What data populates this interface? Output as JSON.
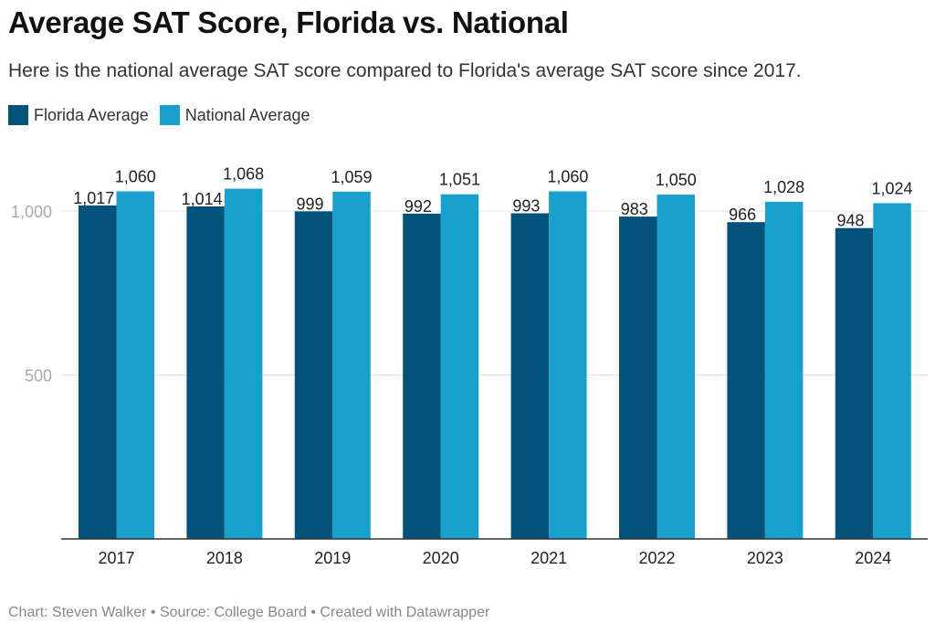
{
  "chart_data": {
    "type": "bar",
    "title": "Average SAT Score, Florida vs. National",
    "subtitle": "Here is the national average SAT score compared to Florida's average SAT score since 2017.",
    "categories": [
      "2017",
      "2018",
      "2019",
      "2020",
      "2021",
      "2022",
      "2023",
      "2024"
    ],
    "series": [
      {
        "name": "Florida Average",
        "color": "#03527b",
        "values": [
          1017,
          1014,
          999,
          992,
          993,
          983,
          966,
          948
        ],
        "labels": [
          "1,017",
          "1,014",
          "999",
          "992",
          "993",
          "983",
          "966",
          "948"
        ]
      },
      {
        "name": "National Average",
        "color": "#18a1cd",
        "values": [
          1060,
          1068,
          1059,
          1051,
          1060,
          1050,
          1028,
          1024
        ],
        "labels": [
          "1,060",
          "1,068",
          "1,059",
          "1,051",
          "1,060",
          "1,050",
          "1,028",
          "1,024"
        ]
      }
    ],
    "yticks": [
      {
        "value": 500,
        "label": "500"
      },
      {
        "value": 1000,
        "label": "1,000"
      }
    ],
    "ylim": [
      0,
      1100
    ],
    "grid": true,
    "legend": "top-left",
    "footer": "Chart: Steven Walker • Source: College Board • Created with Datawrapper"
  }
}
